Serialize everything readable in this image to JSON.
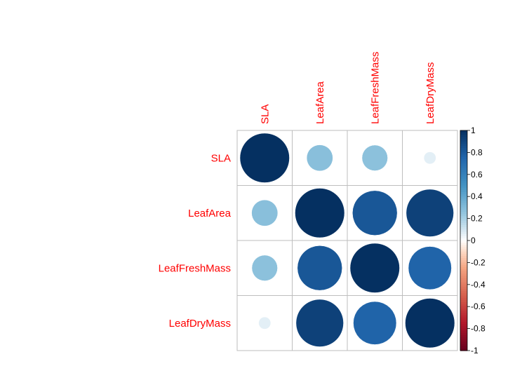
{
  "chart_data": {
    "type": "heatmap",
    "variables": [
      "SLA",
      "LeafArea",
      "LeafFreshMass",
      "LeafDryMass"
    ],
    "matrix": [
      [
        1.0,
        0.28,
        0.27,
        0.06
      ],
      [
        0.28,
        1.0,
        0.82,
        0.92
      ],
      [
        0.27,
        0.82,
        1.0,
        0.76
      ],
      [
        0.06,
        0.92,
        0.76,
        1.0
      ]
    ],
    "colorbar": {
      "range": [
        -1,
        1
      ],
      "ticks": [
        "-1",
        "-0.8",
        "-0.6",
        "-0.4",
        "-0.2",
        "0",
        "0.2",
        "0.4",
        "0.6",
        "0.8",
        "1"
      ],
      "tick_values": [
        -1,
        -0.8,
        -0.6,
        -0.4,
        -0.2,
        0,
        0.2,
        0.4,
        0.6,
        0.8,
        1
      ]
    },
    "label_color": "#ff0000",
    "grid": true,
    "legend_position": "right"
  }
}
